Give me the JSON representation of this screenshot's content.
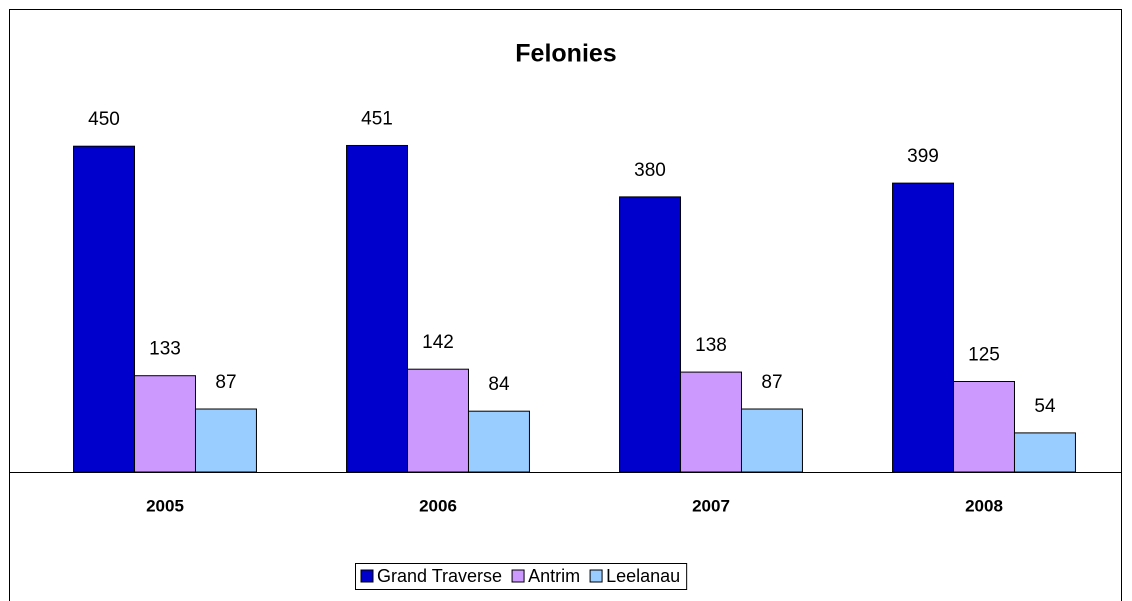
{
  "chart_data": {
    "type": "bar",
    "title": "Felonies",
    "categories": [
      "2005",
      "2006",
      "2007",
      "2008"
    ],
    "series": [
      {
        "name": "Grand Traverse",
        "color": "#0000cc",
        "values": [
          450,
          451,
          380,
          399
        ]
      },
      {
        "name": "Antrim",
        "color": "#cc99ff",
        "values": [
          133,
          142,
          138,
          125
        ]
      },
      {
        "name": "Leelanau",
        "color": "#99ccff",
        "values": [
          87,
          84,
          87,
          54
        ]
      }
    ],
    "ylim": [
      0,
      500
    ],
    "legend": "bottom"
  }
}
